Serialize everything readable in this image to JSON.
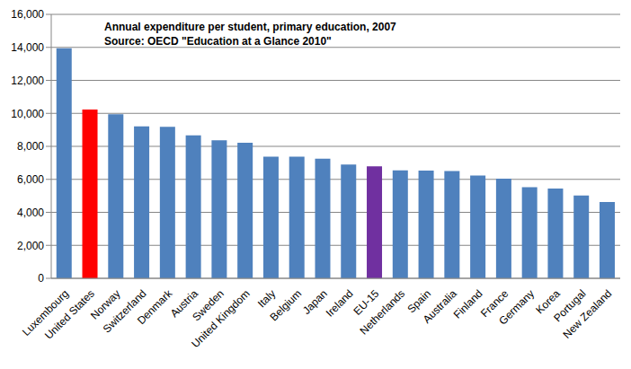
{
  "chart_data": {
    "type": "bar",
    "title": "Annual expenditure per student, primary education, 2007",
    "subtitle": "Source: OECD \"Education at a Glance 2010\"",
    "categories": [
      "Luxembourg",
      "United States",
      "Norway",
      "Switzerland",
      "Denmark",
      "Austria",
      "Sweden",
      "United Kingdom",
      "Italy",
      "Belgium",
      "Japan",
      "Ireland",
      "EU-15",
      "Netherlands",
      "Spain",
      "Australia",
      "Finland",
      "France",
      "Germany",
      "Korea",
      "Portugal",
      "New Zealand"
    ],
    "values": [
      13950,
      10230,
      9950,
      9210,
      9180,
      8660,
      8370,
      8220,
      7380,
      7380,
      7250,
      6900,
      6790,
      6550,
      6530,
      6500,
      6230,
      6040,
      5530,
      5440,
      5020,
      4630
    ],
    "colors": [
      "#4f81bd",
      "#ff0000",
      "#4f81bd",
      "#4f81bd",
      "#4f81bd",
      "#4f81bd",
      "#4f81bd",
      "#4f81bd",
      "#4f81bd",
      "#4f81bd",
      "#4f81bd",
      "#4f81bd",
      "#7030a0",
      "#4f81bd",
      "#4f81bd",
      "#4f81bd",
      "#4f81bd",
      "#4f81bd",
      "#4f81bd",
      "#4f81bd",
      "#4f81bd",
      "#4f81bd"
    ],
    "ylim": [
      0,
      16000
    ],
    "yticks": [
      0,
      {
        "value": 2000,
        "label": "2,000"
      },
      {
        "value": 4000,
        "label": "4,000"
      },
      {
        "value": 6000,
        "label": "6,000"
      },
      {
        "value": 8000,
        "label": "8,000"
      },
      {
        "value": 10000,
        "label": "10,000"
      },
      {
        "value": 12000,
        "label": "12,000"
      },
      {
        "value": 14000,
        "label": "14,000"
      },
      {
        "value": 16000,
        "label": "16,000"
      }
    ],
    "grid": true
  }
}
